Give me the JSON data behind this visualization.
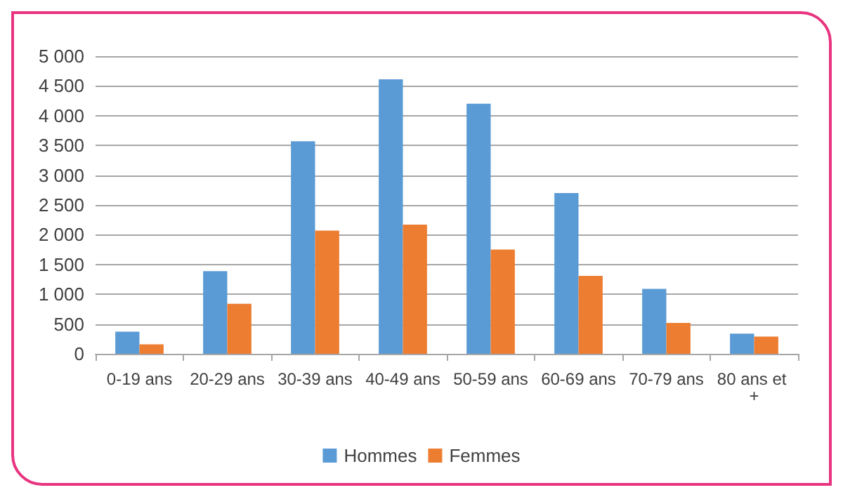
{
  "chart_data": {
    "type": "bar",
    "categories": [
      "0-19 ans",
      "20-29 ans",
      "30-39 ans",
      "40-49 ans",
      "50-59 ans",
      "60-69 ans",
      "70-79 ans",
      "80 ans et +"
    ],
    "series": [
      {
        "name": "Hommes",
        "color": "#5b9bd5",
        "values": [
          370,
          1390,
          3570,
          4610,
          4200,
          2700,
          1090,
          340
        ]
      },
      {
        "name": "Femmes",
        "color": "#ed7d31",
        "values": [
          160,
          840,
          2070,
          2170,
          1750,
          1310,
          520,
          290
        ]
      }
    ],
    "ylim": [
      0,
      5000
    ],
    "yticks": [
      0,
      500,
      {
        "value": 1000,
        "label": "1 000"
      },
      {
        "value": 1500,
        "label": "1 500"
      },
      {
        "value": 2000,
        "label": "2 000"
      },
      {
        "value": 2500,
        "label": "2 500"
      },
      {
        "value": 3000,
        "label": "3 000"
      },
      {
        "value": 3500,
        "label": "3 500"
      },
      {
        "value": 4000,
        "label": "4 000"
      },
      {
        "value": 4500,
        "label": "4 500"
      },
      {
        "value": 5000,
        "label": "5 000"
      }
    ],
    "grid": "y",
    "legend": "bottom"
  }
}
